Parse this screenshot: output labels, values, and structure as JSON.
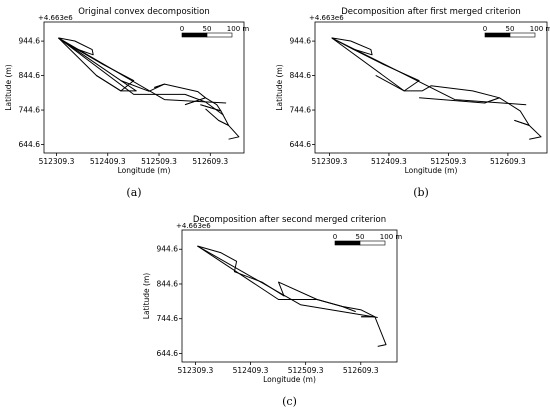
{
  "chart_data": [
    {
      "type": "line",
      "title": "Original convex decomposition",
      "caption": "(a)",
      "xlabel": "Longitude (m)",
      "ylabel": "Latitude (m)",
      "offset_label": "+4.663e6",
      "x_ticks": [
        "512309.3",
        "512409.3",
        "512509.3",
        "512609.3"
      ],
      "y_ticks": [
        "944.6",
        "844.6",
        "744.6",
        "644.6"
      ],
      "xlim": [
        512285,
        512675
      ],
      "ylim": [
        620,
        1000
      ],
      "grid": false,
      "scale_bar": {
        "zero": "0",
        "mid": "50",
        "end": "100 m"
      },
      "series": [
        {
          "x": [
            512313,
            512345,
            512379,
            512381,
            512348
          ],
          "y": [
            954,
            945,
            920,
            905,
            922
          ]
        },
        {
          "x": [
            512313,
            512348,
            512400,
            512460,
            512435,
            512387
          ],
          "y": [
            954,
            922,
            877,
            830,
            800,
            845
          ]
        },
        {
          "x": [
            512313,
            512387,
            512435,
            512465,
            512435
          ],
          "y": [
            954,
            845,
            800,
            800,
            830
          ]
        },
        {
          "x": [
            512313,
            512435,
            512490,
            512520,
            512500
          ],
          "y": [
            954,
            830,
            799,
            820,
            810
          ]
        },
        {
          "x": [
            512500,
            512520,
            512585,
            512600,
            512560
          ],
          "y": [
            810,
            820,
            798,
            780,
            760
          ]
        },
        {
          "x": [
            512560,
            512600,
            512622,
            512630,
            512590
          ],
          "y": [
            760,
            780,
            760,
            742,
            760
          ]
        },
        {
          "x": [
            512590,
            512630,
            512645,
            512625,
            512600
          ],
          "y": [
            760,
            742,
            700,
            715,
            748
          ]
        },
        {
          "x": [
            512625,
            512645,
            512665,
            512645
          ],
          "y": [
            715,
            700,
            667,
            660
          ]
        },
        {
          "x": [
            512313,
            512460,
            512560,
            512600,
            512635
          ],
          "y": [
            954,
            790,
            790,
            768,
            730
          ]
        },
        {
          "x": [
            512313,
            512520,
            512640
          ],
          "y": [
            954,
            775,
            765
          ]
        }
      ]
    },
    {
      "type": "line",
      "title": "Decomposition after first merged criterion",
      "caption": "(b)",
      "xlabel": "Longitude (m)",
      "ylabel": "Latitude (m)",
      "offset_label": "+4.663e6",
      "x_ticks": [
        "512309.3",
        "512409.3",
        "512509.3",
        "512609.3"
      ],
      "y_ticks": [
        "944.6",
        "844.6",
        "744.6",
        "644.6"
      ],
      "xlim": [
        512285,
        512675
      ],
      "ylim": [
        620,
        1000
      ],
      "grid": false,
      "scale_bar": {
        "zero": "0",
        "mid": "50",
        "end": "100 m"
      },
      "series": [
        {
          "x": [
            512313,
            512345,
            512379,
            512381,
            512348
          ],
          "y": [
            954,
            945,
            920,
            905,
            922
          ]
        },
        {
          "x": [
            512313,
            512348,
            512400,
            512460,
            512435,
            512387
          ],
          "y": [
            954,
            922,
            877,
            830,
            800,
            845
          ]
        },
        {
          "x": [
            512313,
            512435,
            512465,
            512480,
            512550,
            512595,
            512570,
            512460
          ],
          "y": [
            954,
            800,
            800,
            815,
            800,
            780,
            765,
            780
          ]
        },
        {
          "x": [
            512570,
            512595,
            512630,
            512645,
            512620
          ],
          "y": [
            765,
            780,
            742,
            700,
            715
          ]
        },
        {
          "x": [
            512620,
            512645,
            512665,
            512645
          ],
          "y": [
            715,
            700,
            667,
            660
          ]
        },
        {
          "x": [
            512313,
            512520,
            512640
          ],
          "y": [
            954,
            775,
            760
          ]
        }
      ]
    },
    {
      "type": "line",
      "title": "Decomposition after second merged criterion",
      "caption": "(c)",
      "xlabel": "Longitude (m)",
      "ylabel": "Latitude (m)",
      "offset_label": "+4.663e6",
      "x_ticks": [
        "512309.3",
        "512409.3",
        "512509.3",
        "512609.3"
      ],
      "y_ticks": [
        "944.6",
        "844.6",
        "744.6",
        "644.6"
      ],
      "xlim": [
        512285,
        512675
      ],
      "ylim": [
        620,
        1000
      ],
      "grid": false,
      "scale_bar": {
        "zero": "0",
        "mid": "50",
        "end": "100 m"
      },
      "series": [
        {
          "x": [
            512313,
            512355,
            512384,
            512380,
            512430,
            512470,
            512460,
            512530
          ],
          "y": [
            954,
            935,
            910,
            880,
            850,
            810,
            850,
            800
          ]
        },
        {
          "x": [
            512313,
            512460,
            512530,
            512575,
            512600
          ],
          "y": [
            954,
            800,
            800,
            780,
            765
          ]
        },
        {
          "x": [
            512530,
            512575,
            512610,
            512635,
            512610
          ],
          "y": [
            800,
            780,
            770,
            750,
            750
          ]
        },
        {
          "x": [
            512610,
            512635,
            512655,
            512640
          ],
          "y": [
            750,
            750,
            670,
            665
          ]
        },
        {
          "x": [
            512313,
            512500,
            512640
          ],
          "y": [
            954,
            785,
            748
          ]
        }
      ]
    }
  ]
}
